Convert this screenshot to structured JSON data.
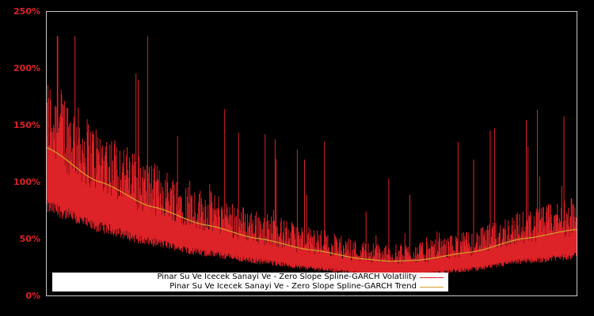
{
  "chart_data": {
    "type": "line",
    "title": "",
    "xlabel": "",
    "ylabel": "",
    "ylim": [
      0,
      250
    ],
    "yticks": [
      "0%",
      "50%",
      "100%",
      "150%",
      "200%",
      "250%"
    ],
    "grid": false,
    "legend_position": "lower center",
    "series": [
      {
        "name": "Pinar Su Ve Icecek Sanayi Ve - Zero Slope Spline-GARCH Volatility",
        "color": "#dd2228",
        "description": "noisy daily volatility, spikes up to ~228%, baseline declining from ~80% to ~20% mid-range then rising to ~40%"
      },
      {
        "name": "Pinar Su Ve Icecek Sanayi Ve - Zero Slope Spline-GARCH Trend",
        "color": "#d4a12a",
        "x_fraction": [
          0,
          0.1,
          0.2,
          0.3,
          0.4,
          0.5,
          0.6,
          0.65,
          0.7,
          0.8,
          0.9,
          1.0
        ],
        "values": [
          130,
          100,
          78,
          62,
          50,
          40,
          32,
          30,
          31,
          38,
          50,
          58
        ]
      }
    ]
  },
  "legend": {
    "volatility_label": "Pinar Su Ve Icecek Sanayi Ve - Zero Slope Spline-GARCH Volatility",
    "trend_label": "Pinar Su Ve Icecek Sanayi Ve - Zero Slope Spline-GARCH Trend"
  },
  "colors": {
    "background": "#000000",
    "axis": "#c8c8c8",
    "tick_text": "#dd2228",
    "volatility": "#dd2228",
    "trend": "#d4a12a"
  }
}
